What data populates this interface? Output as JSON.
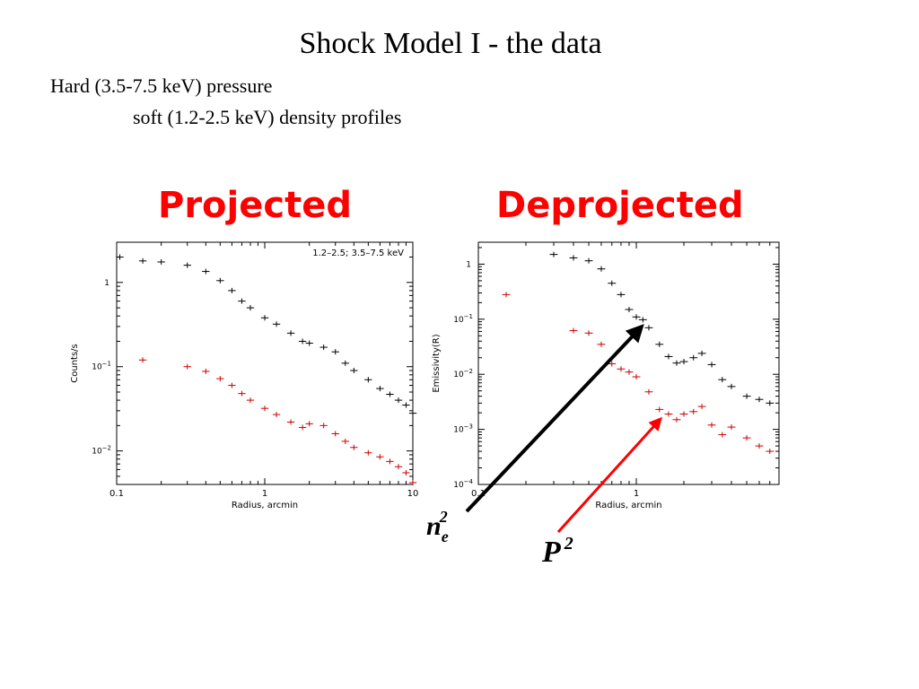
{
  "slide": {
    "title": "Shock Model I - the data",
    "subtitle_line1": "Hard (3.5-7.5 keV) pressure",
    "subtitle_line2": "soft (1.2-2.5  keV) density profiles",
    "heading_left": "Projected",
    "heading_right": "Deprojected",
    "heading_color": "#ff0000"
  },
  "annotations": {
    "ne_base": "n",
    "ne_sub": "e",
    "ne_sup": "2",
    "p_base": "P",
    "p_sup": "2",
    "ne_arrow_color": "#000000",
    "p_arrow_color": "#ff0000"
  },
  "chart_data": [
    {
      "type": "scatter",
      "title": "",
      "legend_text": "1.2–2.5; 3.5–7.5 keV",
      "xlabel": "Radius, arcmin",
      "ylabel": "Counts/s",
      "xscale": "log",
      "yscale": "log",
      "xlim": [
        0.1,
        10
      ],
      "ylim": [
        0.004,
        3
      ],
      "xticks": [
        {
          "value": 0.1,
          "label": "0.1"
        },
        {
          "value": 1,
          "label": "1"
        },
        {
          "value": 10,
          "label": "10"
        }
      ],
      "yticks": [
        {
          "value": 1,
          "base": "1",
          "exp": ""
        },
        {
          "value": 0.1,
          "base": "10",
          "exp": "−1"
        },
        {
          "value": 0.01,
          "base": "10",
          "exp": "−2"
        }
      ],
      "series": [
        {
          "color": "#000000",
          "x": [
            0.105,
            0.15,
            0.2,
            0.3,
            0.4,
            0.5,
            0.6,
            0.7,
            0.8,
            1.0,
            1.2,
            1.5,
            1.8,
            2.0,
            2.5,
            3.0,
            3.5,
            4.0,
            5.0,
            6.0,
            7.0,
            8.0,
            9.0,
            10.0
          ],
          "y": [
            2.0,
            1.8,
            1.75,
            1.6,
            1.35,
            1.05,
            0.8,
            0.6,
            0.5,
            0.38,
            0.32,
            0.25,
            0.2,
            0.19,
            0.17,
            0.15,
            0.11,
            0.09,
            0.07,
            0.055,
            0.047,
            0.04,
            0.035,
            0.028
          ]
        },
        {
          "color": "#cc0000",
          "x": [
            0.15,
            0.3,
            0.4,
            0.5,
            0.6,
            0.7,
            0.8,
            1.0,
            1.2,
            1.5,
            1.8,
            2.0,
            2.5,
            3.0,
            3.5,
            4.0,
            5.0,
            6.0,
            7.0,
            8.0,
            9.0,
            10.0
          ],
          "y": [
            0.12,
            0.1,
            0.088,
            0.072,
            0.06,
            0.048,
            0.04,
            0.032,
            0.027,
            0.022,
            0.019,
            0.021,
            0.02,
            0.016,
            0.013,
            0.011,
            0.0095,
            0.0085,
            0.0075,
            0.0065,
            0.0055,
            0.0042
          ]
        }
      ]
    },
    {
      "type": "scatter",
      "title": "",
      "xlabel": "Radius, arcmin",
      "ylabel": "Emissivity(R)",
      "xscale": "log",
      "yscale": "log",
      "xlim": [
        0.1,
        8
      ],
      "ylim": [
        0.0001,
        2.5
      ],
      "xticks": [
        {
          "value": 0.1,
          "label": "0.1"
        },
        {
          "value": 1,
          "label": "1"
        }
      ],
      "yticks": [
        {
          "value": 1,
          "base": "1",
          "exp": ""
        },
        {
          "value": 0.1,
          "base": "10",
          "exp": "−1"
        },
        {
          "value": 0.01,
          "base": "10",
          "exp": "−2"
        },
        {
          "value": 0.001,
          "base": "10",
          "exp": "−3"
        },
        {
          "value": 0.0001,
          "base": "10",
          "exp": "−4"
        }
      ],
      "series": [
        {
          "color": "#000000",
          "x": [
            0.3,
            0.4,
            0.5,
            0.6,
            0.7,
            0.8,
            0.9,
            1.0,
            1.1,
            1.2,
            1.4,
            1.6,
            1.8,
            2.0,
            2.3,
            2.6,
            3.0,
            3.5,
            4.0,
            5.0,
            6.0,
            7.0
          ],
          "y": [
            1.5,
            1.3,
            1.15,
            0.82,
            0.45,
            0.28,
            0.15,
            0.11,
            0.098,
            0.07,
            0.035,
            0.021,
            0.016,
            0.017,
            0.02,
            0.024,
            0.015,
            0.008,
            0.006,
            0.004,
            0.0035,
            0.003
          ]
        },
        {
          "color": "#cc0000",
          "x": [
            0.15,
            0.4,
            0.5,
            0.6,
            0.7,
            0.8,
            0.9,
            1.0,
            1.2,
            1.4,
            1.6,
            1.8,
            2.0,
            2.3,
            2.6,
            3.0,
            3.5,
            4.0,
            5.0,
            6.0,
            7.0
          ],
          "y": [
            0.28,
            0.062,
            0.056,
            0.035,
            0.0155,
            0.0125,
            0.011,
            0.009,
            0.0048,
            0.0023,
            0.0019,
            0.0015,
            0.0019,
            0.0021,
            0.0026,
            0.0012,
            0.0008,
            0.0011,
            0.0007,
            0.0005,
            0.0004
          ]
        }
      ]
    }
  ]
}
